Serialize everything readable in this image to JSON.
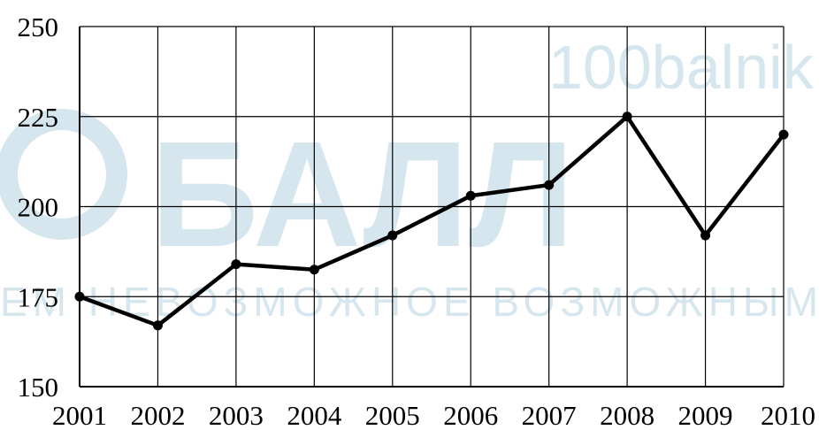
{
  "watermark": {
    "domain": "100balnik",
    "brand": "БАЛЛ",
    "slogan": "ЕМ НЕВОЗМОЖНОЕ ВОЗМОЖНЫМ"
  },
  "chart_data": {
    "type": "line",
    "title": "",
    "xlabel": "",
    "ylabel": "",
    "categories": [
      "2001",
      "2002",
      "2003",
      "2004",
      "2005",
      "2006",
      "2007",
      "2008",
      "2009",
      "2010"
    ],
    "series": [
      {
        "values": [
          175,
          167,
          184,
          182.5,
          192,
          203,
          206,
          225,
          192,
          220
        ]
      }
    ],
    "ylim": [
      150,
      250
    ],
    "yticks": [
      150,
      175,
      200,
      225,
      250
    ],
    "grid": true,
    "legend": "none",
    "line_color": "#000000",
    "grid_color": "#000000"
  }
}
